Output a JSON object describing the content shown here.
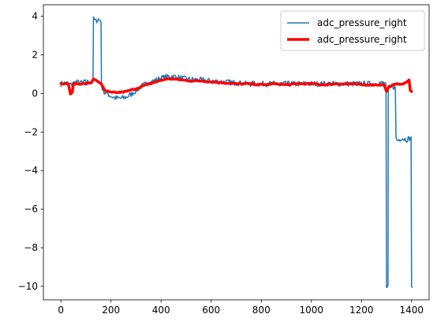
{
  "chart_data": {
    "type": "line",
    "title": "",
    "xlabel": "",
    "ylabel": "",
    "xlim": [
      -70,
      1470
    ],
    "ylim": [
      -10.7,
      4.6
    ],
    "xticks": [
      0,
      200,
      400,
      600,
      800,
      1000,
      1200,
      1400
    ],
    "yticks": [
      4,
      2,
      0,
      -2,
      -4,
      -6,
      -8,
      -10
    ],
    "ytick_labels": [
      "4",
      "2",
      "0",
      "−2",
      "−4",
      "−6",
      "−8",
      "−10"
    ],
    "grid": false,
    "legend": {
      "placement": "top-right"
    },
    "series": [
      {
        "name": "adc_pressure_right",
        "color": "#1f77b4",
        "style": "thin-noisy",
        "points": [
          [
            0,
            0.5
          ],
          [
            20,
            0.55
          ],
          [
            40,
            0.45
          ],
          [
            60,
            0.6
          ],
          [
            80,
            0.55
          ],
          [
            100,
            0.6
          ],
          [
            120,
            0.6
          ],
          [
            128,
            0.6
          ],
          [
            130,
            3.85
          ],
          [
            140,
            3.75
          ],
          [
            150,
            3.85
          ],
          [
            158,
            3.75
          ],
          [
            160,
            3.7
          ],
          [
            162,
            0.4
          ],
          [
            170,
            0.1
          ],
          [
            185,
            0.0
          ],
          [
            200,
            -0.15
          ],
          [
            220,
            -0.25
          ],
          [
            240,
            -0.25
          ],
          [
            260,
            -0.2
          ],
          [
            280,
            -0.05
          ],
          [
            300,
            0.15
          ],
          [
            320,
            0.35
          ],
          [
            340,
            0.5
          ],
          [
            360,
            0.6
          ],
          [
            380,
            0.7
          ],
          [
            400,
            0.8
          ],
          [
            420,
            0.85
          ],
          [
            440,
            0.9
          ],
          [
            460,
            0.85
          ],
          [
            480,
            0.8
          ],
          [
            500,
            0.75
          ],
          [
            550,
            0.7
          ],
          [
            600,
            0.65
          ],
          [
            650,
            0.6
          ],
          [
            700,
            0.55
          ],
          [
            750,
            0.5
          ],
          [
            800,
            0.5
          ],
          [
            850,
            0.5
          ],
          [
            900,
            0.5
          ],
          [
            950,
            0.5
          ],
          [
            1000,
            0.5
          ],
          [
            1050,
            0.5
          ],
          [
            1100,
            0.5
          ],
          [
            1150,
            0.5
          ],
          [
            1200,
            0.5
          ],
          [
            1250,
            0.5
          ],
          [
            1290,
            0.55
          ],
          [
            1298,
            0.5
          ],
          [
            1300,
            -10.05
          ],
          [
            1303,
            -10.05
          ],
          [
            1306,
            -9.9
          ],
          [
            1307,
            0.2
          ],
          [
            1320,
            0.4
          ],
          [
            1335,
            0.3
          ],
          [
            1338,
            -2.35
          ],
          [
            1345,
            -2.45
          ],
          [
            1360,
            -2.3
          ],
          [
            1380,
            -2.4
          ],
          [
            1395,
            -2.3
          ],
          [
            1398,
            -2.25
          ],
          [
            1400,
            -10.0
          ],
          [
            1402,
            -10.05
          ]
        ]
      },
      {
        "name": "adc_pressure_right",
        "color": "#ff0000",
        "style": "thick-smooth",
        "points": [
          [
            0,
            0.5
          ],
          [
            20,
            0.5
          ],
          [
            30,
            0.45
          ],
          [
            38,
            0.0
          ],
          [
            45,
            0.05
          ],
          [
            50,
            0.5
          ],
          [
            80,
            0.5
          ],
          [
            100,
            0.5
          ],
          [
            120,
            0.55
          ],
          [
            130,
            0.75
          ],
          [
            140,
            0.7
          ],
          [
            150,
            0.6
          ],
          [
            160,
            0.5
          ],
          [
            175,
            0.15
          ],
          [
            200,
            0.05
          ],
          [
            230,
            0.05
          ],
          [
            260,
            0.1
          ],
          [
            300,
            0.25
          ],
          [
            340,
            0.45
          ],
          [
            380,
            0.6
          ],
          [
            420,
            0.75
          ],
          [
            450,
            0.75
          ],
          [
            480,
            0.7
          ],
          [
            520,
            0.65
          ],
          [
            560,
            0.65
          ],
          [
            600,
            0.6
          ],
          [
            650,
            0.55
          ],
          [
            700,
            0.5
          ],
          [
            750,
            0.5
          ],
          [
            800,
            0.45
          ],
          [
            850,
            0.5
          ],
          [
            900,
            0.45
          ],
          [
            950,
            0.5
          ],
          [
            1000,
            0.5
          ],
          [
            1050,
            0.45
          ],
          [
            1100,
            0.5
          ],
          [
            1150,
            0.5
          ],
          [
            1200,
            0.45
          ],
          [
            1250,
            0.45
          ],
          [
            1290,
            0.45
          ],
          [
            1300,
            0.1
          ],
          [
            1310,
            0.35
          ],
          [
            1330,
            0.45
          ],
          [
            1350,
            0.5
          ],
          [
            1370,
            0.5
          ],
          [
            1390,
            0.7
          ],
          [
            1395,
            0.15
          ],
          [
            1400,
            0.1
          ]
        ]
      }
    ]
  }
}
